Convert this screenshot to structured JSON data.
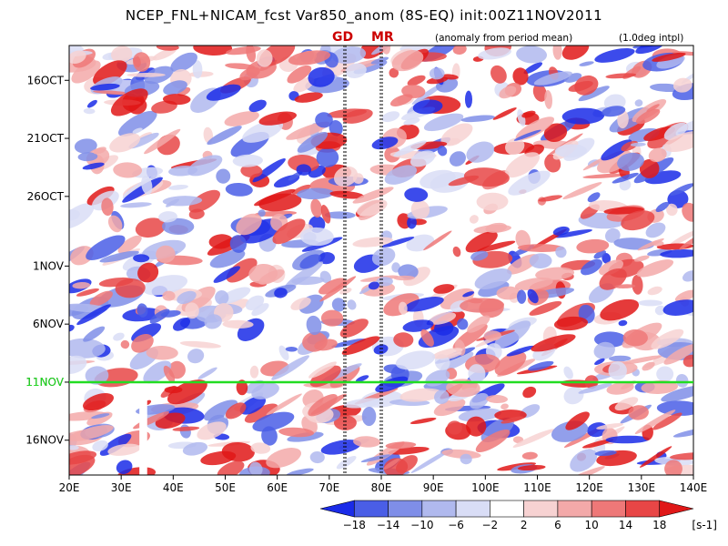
{
  "title": "NCEP_FNL+NICAM_fcst Var850_anom (8S-EQ) init:00Z11NOV2011",
  "subtitle_left": "(anomaly from period mean)",
  "subtitle_right": "(1.0deg intpl)",
  "markers": [
    {
      "label": "GD",
      "lon": 73
    },
    {
      "label": "MR",
      "lon": 80
    }
  ],
  "chart_data": {
    "type": "heatmap",
    "title": "NCEP_FNL+NICAM_fcst Var850_anom (8S-EQ) init:00Z11NOV2011",
    "x_axis": {
      "range": [
        20,
        140
      ],
      "ticks": [
        "20E",
        "30E",
        "40E",
        "50E",
        "60E",
        "70E",
        "80E",
        "90E",
        "100E",
        "110E",
        "120E",
        "130E",
        "140E"
      ]
    },
    "y_axis": {
      "range": [
        "13OCT2011",
        "19NOV2011"
      ],
      "ticks": [
        "16OCT",
        "21OCT",
        "26OCT",
        "1NOV",
        "6NOV",
        "11NOV",
        "16NOV"
      ],
      "orientation": "time increasing downward"
    },
    "init_line": {
      "date": "11NOV",
      "label": "11NOV",
      "color": "#22dd22"
    },
    "colorbar": {
      "levels": [
        "-18",
        "-14",
        "-10",
        "-6",
        "-2",
        "2",
        "6",
        "10",
        "14",
        "18"
      ],
      "unit": "[s-1]",
      "colors": [
        "#1a2be8",
        "#4a5ee6",
        "#7f8ee8",
        "#b0b9ee",
        "#d9ddf6",
        "#ffffff",
        "#f7d2d2",
        "#f3a9a9",
        "#ee7878",
        "#e84646",
        "#e01818"
      ]
    }
  }
}
